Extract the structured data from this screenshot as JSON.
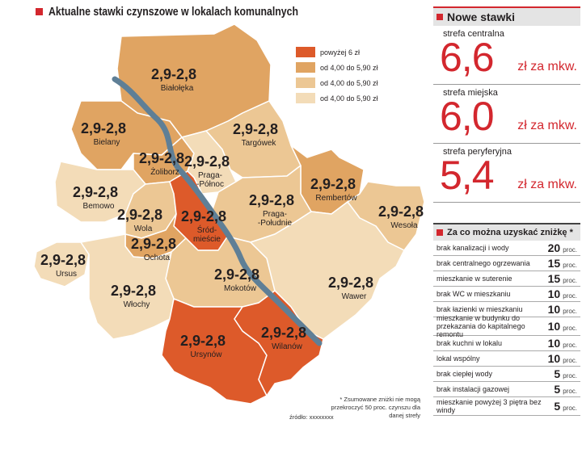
{
  "title": "Aktualne stawki czynszowe w lokalach komunalnych",
  "legend": [
    {
      "label": "powyżej 6 zł",
      "color": "#dd5a2a"
    },
    {
      "label": "od 4,00 do 5,90 zł",
      "color": "#e0a462"
    },
    {
      "label": "od 4,00 do 5,90 zł",
      "color": "#ecc794"
    },
    {
      "label": "od 4,00 do 5,90 zł",
      "color": "#f3dcb8"
    }
  ],
  "districts": [
    {
      "name": "Białołęka",
      "rate": "2,9-2,8",
      "color": "#e0a462"
    },
    {
      "name": "Bielany",
      "rate": "2,9-2,8",
      "color": "#e0a462"
    },
    {
      "name": "Targówek",
      "rate": "2,9-2,8",
      "color": "#ecc794"
    },
    {
      "name": "Żoliborz",
      "rate": "2,9-2,8",
      "color": "#e0a462"
    },
    {
      "name": "Praga-\n-Północ",
      "rate": "2,9-2,8",
      "color": "#f3dcb8"
    },
    {
      "name": "Bemowo",
      "rate": "2,9-2,8",
      "color": "#f3dcb8"
    },
    {
      "name": "Rembertów",
      "rate": "2,9-2,8",
      "color": "#e0a462"
    },
    {
      "name": "Wola",
      "rate": "2,9-2,8",
      "color": "#ecc794"
    },
    {
      "name": "Śród-\nmieście",
      "rate": "2,9-2,8",
      "color": "#dd5a2a"
    },
    {
      "name": "Praga-\n-Południe",
      "rate": "2,9-2,8",
      "color": "#ecc794"
    },
    {
      "name": "Wesoła",
      "rate": "2,9-2,8",
      "color": "#ecc794"
    },
    {
      "name": "Ochota",
      "rate": "2,9-2,8",
      "color": "#e0a462"
    },
    {
      "name": "Ursus",
      "rate": "2,9-2,8",
      "color": "#f3dcb8"
    },
    {
      "name": "Mokotów",
      "rate": "2,9-2,8",
      "color": "#ecc794"
    },
    {
      "name": "Wawer",
      "rate": "2,9-2,8",
      "color": "#f3dcb8"
    },
    {
      "name": "Włochy",
      "rate": "2,9-2,8",
      "color": "#f3dcb8"
    },
    {
      "name": "Ursynów",
      "rate": "2,9-2,8",
      "color": "#dd5a2a"
    },
    {
      "name": "Wilanów",
      "rate": "2,9-2,8",
      "color": "#dd5a2a"
    }
  ],
  "river_color": "#5f7f96",
  "footnote": "* Zsumowane zniżki nie mogą przekroczyć 50 proc. czynszu dla danej strefy",
  "source": "źródło: xxxxxxxx",
  "new_rates": {
    "heading": "Nowe stawki",
    "unit": "zł za mkw.",
    "zones": [
      {
        "name": "strefa centralna",
        "value": "6,6"
      },
      {
        "name": "strefa miejska",
        "value": "6,0"
      },
      {
        "name": "strefa peryferyjna",
        "value": "5,4"
      }
    ]
  },
  "discounts": {
    "heading": "Za co można uzyskać zniżkę *",
    "unit": "proc.",
    "items": [
      {
        "label": "brak kanalizacji i wody",
        "value": "20"
      },
      {
        "label": "brak centralnego ogrzewania",
        "value": "15"
      },
      {
        "label": "mieszkanie w suterenie",
        "value": "15"
      },
      {
        "label": "brak WC w mieszkaniu",
        "value": "10"
      },
      {
        "label": "brak łazienki w mieszkaniu",
        "value": "10"
      },
      {
        "label": "mieszkanie w budynku do przekazania do kapitalnego remontu",
        "value": "10"
      },
      {
        "label": "brak kuchni w lokalu",
        "value": "10"
      },
      {
        "label": "lokal wspólny",
        "value": "10"
      },
      {
        "label": "brak ciepłej wody",
        "value": "5"
      },
      {
        "label": "brak instalacji gazowej",
        "value": "5"
      },
      {
        "label": "mieszkanie powyżej 3 piętra bez windy",
        "value": "5"
      }
    ]
  }
}
